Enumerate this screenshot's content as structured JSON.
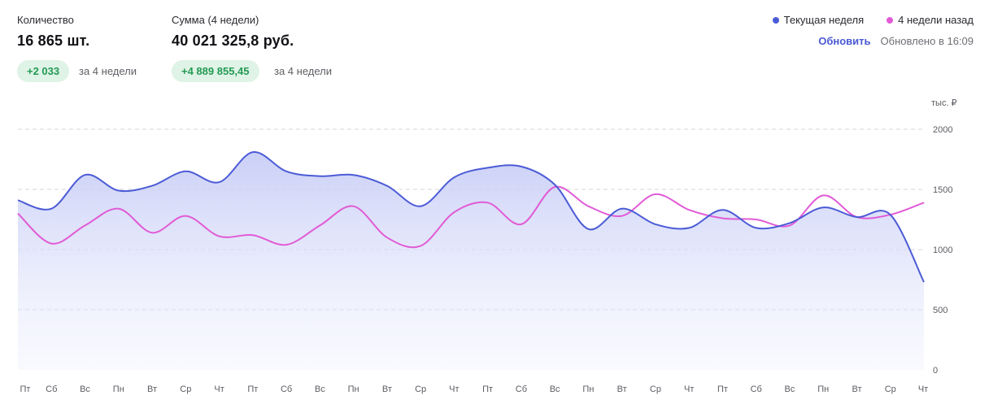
{
  "stats": [
    {
      "label": "Количество",
      "value": "16 865 шт.",
      "delta": "+2 033",
      "period": "за 4 недели"
    },
    {
      "label": "Сумма (4 недели)",
      "value": "40 021 325,8 руб.",
      "delta": "+4 889 855,45",
      "period": "за 4 недели"
    }
  ],
  "legend": {
    "current": "Текущая неделя",
    "previous": "4 недели назад"
  },
  "refresh": {
    "label": "Обновить",
    "updated": "Обновлено в 16:09"
  },
  "colors": {
    "current": "#4b5bd6",
    "previous": "#e15bd6",
    "positive_bg": "#dff3e6",
    "positive_text": "#239a54",
    "grid": "#d4d4d8"
  },
  "chart_data": {
    "type": "area",
    "unit_label": "тыс. ₽",
    "ylim": [
      0,
      2000
    ],
    "yticks": [
      0,
      500,
      1000,
      1500,
      2000
    ],
    "categories": [
      "Пт",
      "Сб",
      "Вс",
      "Пн",
      "Вт",
      "Ср",
      "Чт",
      "Пт",
      "Сб",
      "Вс",
      "Пн",
      "Вт",
      "Ср",
      "Чт",
      "Пт",
      "Сб",
      "Вс",
      "Пн",
      "Вт",
      "Ср",
      "Чт",
      "Пт",
      "Сб",
      "Вс",
      "Пн",
      "Вт",
      "Ср",
      "Чт"
    ],
    "series": [
      {
        "name": "Текущая неделя",
        "values": [
          1410,
          1340,
          1620,
          1490,
          1530,
          1650,
          1560,
          1810,
          1650,
          1610,
          1620,
          1530,
          1360,
          1600,
          1680,
          1690,
          1540,
          1170,
          1340,
          1210,
          1180,
          1330,
          1180,
          1220,
          1350,
          1270,
          1290,
          730
        ]
      },
      {
        "name": "4 недели назад",
        "values": [
          1300,
          1050,
          1200,
          1340,
          1140,
          1280,
          1110,
          1120,
          1040,
          1200,
          1360,
          1100,
          1030,
          1310,
          1390,
          1210,
          1520,
          1360,
          1280,
          1460,
          1330,
          1260,
          1250,
          1200,
          1450,
          1270,
          1290,
          1390
        ]
      }
    ]
  }
}
